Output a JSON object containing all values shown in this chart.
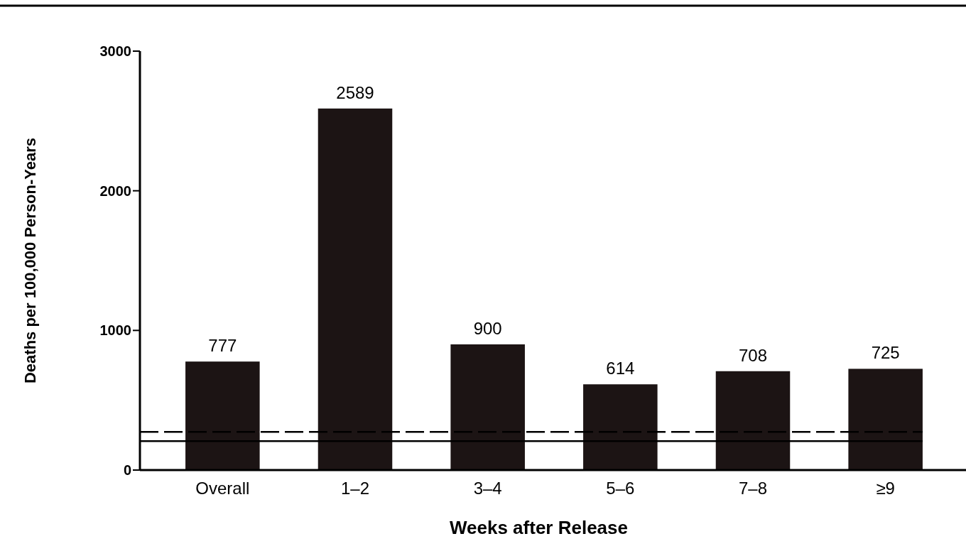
{
  "chart_data": {
    "type": "bar",
    "xlabel": "Weeks after Release",
    "ylabel": "Deaths per 100,000 Person-Years",
    "categories": [
      "Overall",
      "1–2",
      "3–4",
      "5–6",
      "7–8",
      "≥9"
    ],
    "values": [
      777,
      2589,
      900,
      614,
      708,
      725
    ],
    "color": "#1c1414",
    "ylim": [
      0,
      3000
    ],
    "yticks": [
      0,
      1000,
      2000,
      3000
    ],
    "grid": false,
    "data_labels": true,
    "ref_lines": [
      {
        "axis": "y",
        "value": 273,
        "line_style": "dashed",
        "color": "#000000"
      },
      {
        "axis": "y",
        "value": 207,
        "line_style": "solid",
        "color": "#000000"
      }
    ]
  }
}
